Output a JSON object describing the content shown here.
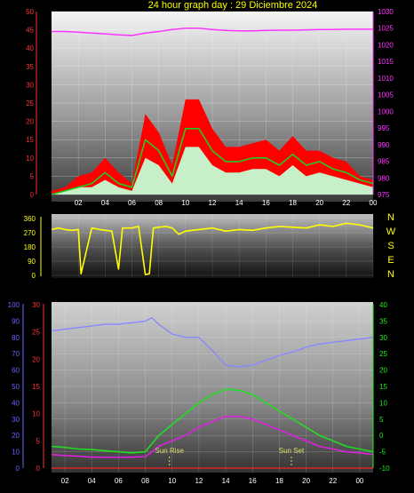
{
  "title": "24 hour graph day : 29 Diciembre 2024",
  "colors": {
    "background": "#000000",
    "gust": "#ff0000",
    "speed": "#c8f0c8",
    "average": "#22cc22",
    "pressure": "#ff33ff",
    "direction": "#ffff00",
    "humidity": "#8888ff",
    "temperature": "#22dd22",
    "dewpoint": "#dd22dd",
    "marker": "#dddd66",
    "axis_left": "#ff3333",
    "axis_right_bottom": "#22ee22",
    "axis_hum": "#6666ff",
    "axis_dir": "#ffff00"
  },
  "x_ticks": [
    "02",
    "04",
    "06",
    "08",
    "10",
    "12",
    "14",
    "16",
    "18",
    "20",
    "22",
    "00"
  ],
  "chart_data": [
    {
      "type": "line",
      "name": "wind_pressure",
      "y_ticks": [
        "0",
        "5",
        "10",
        "15",
        "20",
        "25",
        "30",
        "35",
        "40",
        "45",
        "50"
      ],
      "ylim": [
        0,
        50
      ],
      "y2_ticks": [
        "975",
        "980",
        "985",
        "990",
        "995",
        "1000",
        "1005",
        "1010",
        "1015",
        "1020",
        "1025",
        "1030"
      ],
      "y2lim": [
        975,
        1030
      ],
      "x_hours": [
        0,
        1,
        2,
        3,
        4,
        5,
        6,
        7,
        8,
        9,
        10,
        11,
        12,
        13,
        14,
        15,
        16,
        17,
        18,
        19,
        20,
        21,
        22,
        23,
        24
      ],
      "series": [
        {
          "key": "gust",
          "values": [
            1,
            2,
            5,
            6,
            10,
            6,
            3,
            22,
            17,
            8,
            26,
            26,
            18,
            13,
            13,
            14,
            15,
            12,
            16,
            12,
            12,
            10,
            9,
            5,
            4
          ]
        },
        {
          "key": "average",
          "values": [
            0,
            1,
            2,
            3,
            6,
            3,
            2,
            15,
            12,
            5,
            18,
            18,
            12,
            9,
            9,
            10,
            10,
            8,
            11,
            8,
            9,
            7,
            6,
            4,
            3
          ]
        },
        {
          "key": "speed",
          "values": [
            0,
            1,
            2,
            2,
            4,
            2,
            1,
            10,
            8,
            3,
            13,
            13,
            8,
            6,
            6,
            7,
            7,
            5,
            8,
            5,
            6,
            5,
            4,
            3,
            2
          ]
        },
        {
          "key": "pressure",
          "axis": "y2",
          "values": [
            1024,
            1024,
            1023.8,
            1023.5,
            1023.3,
            1023,
            1022.8,
            1023.5,
            1024,
            1024.6,
            1025,
            1025,
            1024.6,
            1024.3,
            1024.2,
            1024.2,
            1024.3,
            1024.4,
            1024.4,
            1024.5,
            1024.6,
            1024.6,
            1024.7,
            1024.7,
            1024.7
          ]
        }
      ]
    },
    {
      "type": "line",
      "name": "wind_direction",
      "y_ticks": [
        "0",
        "90",
        "180",
        "270",
        "360"
      ],
      "ylim": [
        0,
        360
      ],
      "directions": [
        "N",
        "W",
        "S",
        "E",
        "N"
      ],
      "x_hours": [
        0,
        0.5,
        1,
        1.5,
        2,
        2.2,
        3,
        3.6,
        4.5,
        5,
        5.3,
        6,
        6.5,
        7,
        7.3,
        7.6,
        8,
        8.5,
        9,
        9.5,
        10,
        11,
        12,
        13,
        14,
        15,
        16,
        17,
        18,
        19,
        20,
        21,
        22,
        23,
        24
      ],
      "values": [
        290,
        300,
        290,
        285,
        290,
        10,
        300,
        290,
        280,
        40,
        300,
        300,
        310,
        5,
        10,
        300,
        305,
        310,
        300,
        260,
        280,
        290,
        300,
        280,
        290,
        285,
        300,
        310,
        305,
        300,
        320,
        310,
        330,
        320,
        300
      ]
    },
    {
      "type": "line",
      "name": "temperature_humidity",
      "y_ticks": [
        "0",
        "5",
        "10",
        "15",
        "20",
        "25",
        "30"
      ],
      "ylim": [
        0,
        30
      ],
      "y_hum_ticks": [
        "0",
        "10",
        "20",
        "30",
        "40",
        "50",
        "60",
        "70",
        "80",
        "90",
        "100"
      ],
      "y_hum_lim": [
        0,
        100
      ],
      "y2_ticks": [
        "-10",
        "-5",
        "0",
        "5",
        "10",
        "15",
        "20",
        "25",
        "30",
        "35",
        "40"
      ],
      "y2lim": [
        -10,
        40
      ],
      "x_hours": [
        0,
        1,
        2,
        3,
        4,
        5,
        6,
        7,
        7.5,
        8,
        9,
        10,
        11,
        12,
        13,
        14,
        15,
        16,
        17,
        18,
        19,
        20,
        21,
        22,
        23,
        24
      ],
      "series": [
        {
          "key": "humidity",
          "axis": "hum",
          "values": [
            84,
            85,
            86,
            87,
            88,
            88,
            89,
            90,
            92,
            88,
            82,
            80,
            80,
            72,
            63,
            62,
            63,
            66,
            69,
            71,
            74,
            76,
            77,
            78,
            79,
            80
          ]
        },
        {
          "key": "temperature",
          "values": [
            4,
            3.8,
            3.5,
            3.4,
            3.2,
            3,
            2.8,
            3,
            4.5,
            6,
            8,
            10,
            12,
            13.5,
            14.5,
            14.3,
            13.5,
            12,
            10.5,
            9,
            7.5,
            6,
            5,
            4,
            3.5,
            3
          ]
        },
        {
          "key": "dewpoint",
          "values": [
            2.5,
            2.3,
            2.2,
            2,
            2,
            2,
            2,
            2.1,
            3,
            4,
            5,
            6,
            7.5,
            8.5,
            9.5,
            9.5,
            9,
            8,
            7,
            6,
            5,
            4,
            3.5,
            3,
            2.8,
            2.5
          ]
        },
        {
          "key": "baseline",
          "values": [
            0,
            0,
            0,
            0,
            0,
            0,
            0,
            0,
            0,
            0,
            0,
            0,
            0,
            0,
            0,
            0,
            0,
            0,
            0,
            0,
            0,
            0,
            0,
            0,
            0,
            0
          ]
        }
      ],
      "annotations": [
        {
          "text": "Sun Rise",
          "hour": 8.8
        },
        {
          "text": "Sun Set",
          "hour": 17.9
        }
      ]
    }
  ]
}
